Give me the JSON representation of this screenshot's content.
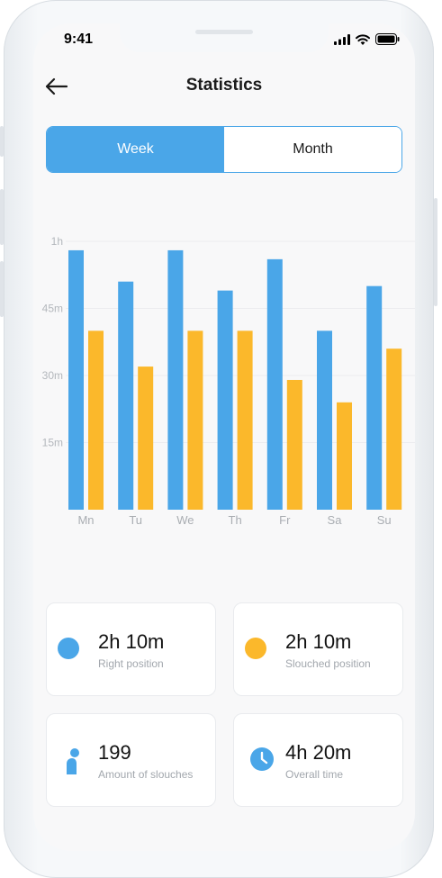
{
  "status_bar": {
    "time": "9:41"
  },
  "header": {
    "title": "Statistics"
  },
  "tabs": [
    {
      "label": "Week",
      "active": true
    },
    {
      "label": "Month",
      "active": false
    }
  ],
  "colors": {
    "right": "#4aa6e8",
    "slouched": "#fbb82b",
    "accent": "#4aa6e8"
  },
  "chart_data": {
    "type": "bar",
    "categories": [
      "Mn",
      "Tu",
      "We",
      "Th",
      "Fr",
      "Sa",
      "Su"
    ],
    "y_tick_labels": [
      "15m",
      "30m",
      "45m",
      "1h"
    ],
    "y_ticks": [
      15,
      30,
      45,
      60
    ],
    "ylim": [
      0,
      60
    ],
    "grid": true,
    "series": [
      {
        "key": "right",
        "values": [
          58,
          51,
          58,
          49,
          56,
          40,
          50
        ]
      },
      {
        "key": "slouched",
        "values": [
          40,
          32,
          40,
          40,
          29,
          24,
          36
        ]
      }
    ]
  },
  "stats": [
    {
      "value": "2h 10m",
      "label": "Right position",
      "icon": "blue-dot-icon"
    },
    {
      "value": "2h 10m",
      "label": "Slouched position",
      "icon": "orange-dot-icon"
    },
    {
      "value": "199",
      "label": "Amount of slouches",
      "icon": "person-icon"
    },
    {
      "value": "4h 20m",
      "label": "Overall time",
      "icon": "clock-icon"
    }
  ]
}
